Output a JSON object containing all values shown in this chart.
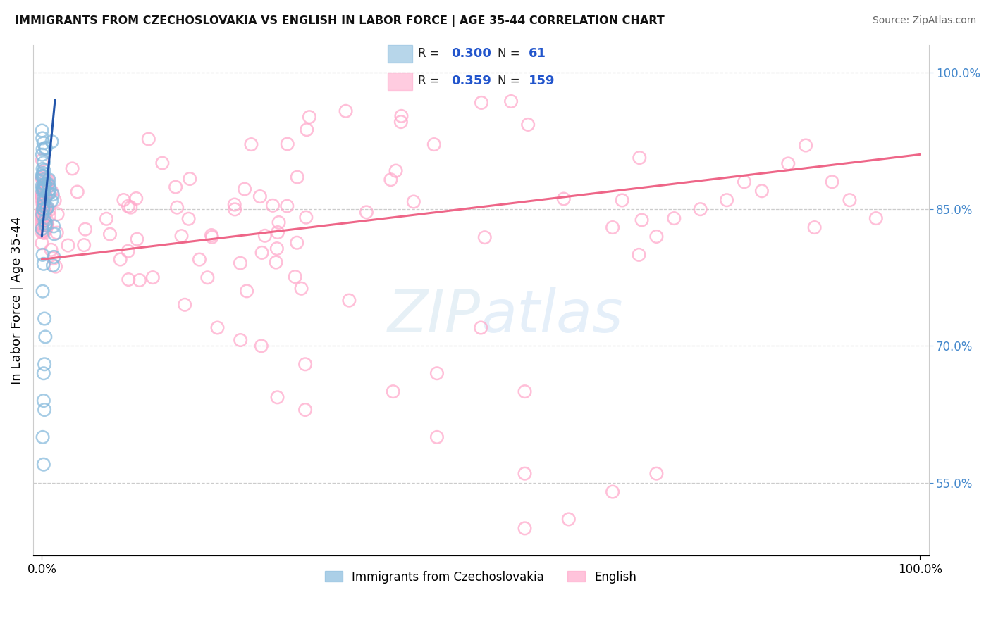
{
  "title": "IMMIGRANTS FROM CZECHOSLOVAKIA VS ENGLISH IN LABOR FORCE | AGE 35-44 CORRELATION CHART",
  "source": "Source: ZipAtlas.com",
  "ylabel": "In Labor Force | Age 35-44",
  "legend_blue_r": "0.300",
  "legend_blue_n": "61",
  "legend_pink_r": "0.359",
  "legend_pink_n": "159",
  "blue_color": "#88bbdd",
  "pink_color": "#ffaacc",
  "blue_line_color": "#2255aa",
  "pink_line_color": "#ee6688",
  "background_color": "#ffffff",
  "grid_color": "#cccccc",
  "right_tick_color": "#4488cc",
  "watermark_color": "#c8dff0",
  "xlim": [
    0.0,
    1.0
  ],
  "ylim": [
    0.47,
    1.03
  ],
  "right_yticks": [
    0.55,
    0.7,
    0.85,
    1.0
  ]
}
